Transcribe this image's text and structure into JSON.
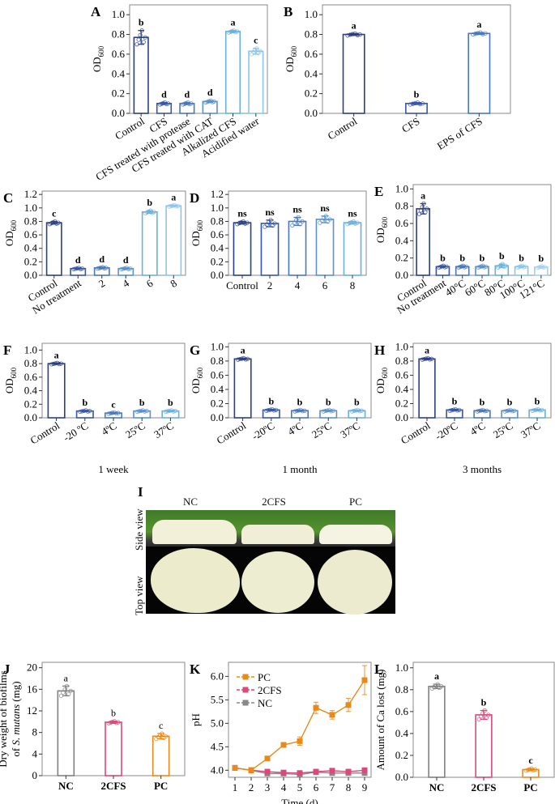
{
  "figure": {
    "panel_labels": [
      "A",
      "B",
      "C",
      "D",
      "E",
      "F",
      "G",
      "H",
      "I",
      "J",
      "K",
      "L"
    ],
    "photo": {
      "column_labels": [
        "NC",
        "2CFS",
        "PC"
      ],
      "row_labels": [
        "Side view",
        "Top view"
      ]
    }
  },
  "chart_data": [
    {
      "id": "A",
      "type": "bar",
      "title": "",
      "xlabel": "",
      "ylabel": "OD600",
      "ylim": [
        0,
        1.1
      ],
      "yticks": [
        0.0,
        0.2,
        0.4,
        0.6,
        0.8,
        1.0
      ],
      "categories": [
        "Control",
        "CFS",
        "CFS treated with protease",
        "CFS treated with CAT",
        "Alkalized CFS",
        "Acidified water"
      ],
      "values": [
        0.77,
        0.1,
        0.1,
        0.12,
        0.83,
        0.63
      ],
      "errors": [
        0.07,
        0.01,
        0.01,
        0.01,
        0.01,
        0.03
      ],
      "significance": [
        "b",
        "d",
        "d",
        "d",
        "a",
        "c"
      ],
      "rotate_xticks": true
    },
    {
      "id": "B",
      "type": "bar",
      "title": "",
      "xlabel": "",
      "ylabel": "OD600",
      "ylim": [
        0,
        1.1
      ],
      "yticks": [
        0.0,
        0.2,
        0.4,
        0.6,
        0.8,
        1.0
      ],
      "categories": [
        "Control",
        "CFS",
        "EPS of CFS"
      ],
      "values": [
        0.8,
        0.1,
        0.81
      ],
      "errors": [
        0.01,
        0.01,
        0.01
      ],
      "significance": [
        "a",
        "b",
        "a"
      ],
      "rotate_xticks": true
    },
    {
      "id": "C",
      "type": "bar",
      "title": "",
      "xlabel": "",
      "ylabel": "OD600",
      "ylim": [
        0,
        1.25
      ],
      "yticks": [
        0.0,
        0.2,
        0.4,
        0.6,
        0.8,
        1.0,
        1.2
      ],
      "categories": [
        "Control",
        "No treatment",
        "2",
        "4",
        "6",
        "8"
      ],
      "values": [
        0.78,
        0.1,
        0.11,
        0.1,
        0.94,
        1.03
      ],
      "errors": [
        0.02,
        0.01,
        0.01,
        0.01,
        0.02,
        0.01
      ],
      "significance": [
        "c",
        "d",
        "d",
        "d",
        "b",
        "a"
      ],
      "rotate_xticks": true
    },
    {
      "id": "D",
      "type": "bar",
      "title": "",
      "xlabel": "",
      "ylabel": "OD600",
      "ylim": [
        0,
        1.25
      ],
      "yticks": [
        0.0,
        0.2,
        0.4,
        0.6,
        0.8,
        1.0,
        1.2
      ],
      "categories": [
        "Control",
        "2",
        "4",
        "6",
        "8"
      ],
      "values": [
        0.78,
        0.77,
        0.8,
        0.83,
        0.78
      ],
      "errors": [
        0.02,
        0.05,
        0.06,
        0.05,
        0.02
      ],
      "significance": [
        "ns",
        "ns",
        "ns",
        "ns",
        "ns"
      ],
      "rotate_xticks": false
    },
    {
      "id": "E",
      "type": "bar",
      "title": "",
      "xlabel": "",
      "ylabel": "OD600",
      "ylim": [
        0,
        1.05
      ],
      "yticks": [
        0.0,
        0.2,
        0.4,
        0.6,
        0.8,
        1.0
      ],
      "categories": [
        "Control",
        "No treatment",
        "40°C",
        "60°C",
        "80°C",
        "100°C",
        "121°C"
      ],
      "values": [
        0.77,
        0.1,
        0.1,
        0.1,
        0.11,
        0.1,
        0.095
      ],
      "errors": [
        0.06,
        0.01,
        0.01,
        0.01,
        0.02,
        0.01,
        0.01
      ],
      "significance": [
        "a",
        "b",
        "b",
        "b",
        "b",
        "b",
        "b"
      ],
      "rotate_xticks": true
    },
    {
      "id": "F",
      "type": "bar",
      "title": "",
      "xlabel": "1 week",
      "ylabel": "OD600",
      "ylim": [
        0,
        1.1
      ],
      "yticks": [
        0.0,
        0.2,
        0.4,
        0.6,
        0.8,
        1.0
      ],
      "categories": [
        "Control",
        "-20 ºC",
        "4ºC",
        "25ºC",
        "37ºC"
      ],
      "values": [
        0.8,
        0.1,
        0.07,
        0.1,
        0.1
      ],
      "errors": [
        0.01,
        0.01,
        0.01,
        0.01,
        0.01
      ],
      "significance": [
        "a",
        "b",
        "c",
        "b",
        "b"
      ],
      "rotate_xticks": true
    },
    {
      "id": "G",
      "type": "bar",
      "title": "",
      "xlabel": "1 month",
      "ylabel": "OD600",
      "ylim": [
        0,
        1.05
      ],
      "yticks": [
        0.0,
        0.2,
        0.4,
        0.6,
        0.8,
        1.0
      ],
      "categories": [
        "Control",
        "-20ºC",
        "4ºC",
        "25ºC",
        "37ºC"
      ],
      "values": [
        0.83,
        0.11,
        0.1,
        0.1,
        0.1
      ],
      "errors": [
        0.01,
        0.01,
        0.01,
        0.01,
        0.01
      ],
      "significance": [
        "a",
        "b",
        "b",
        "b",
        "b"
      ],
      "rotate_xticks": true
    },
    {
      "id": "H",
      "type": "bar",
      "title": "",
      "xlabel": "3 months",
      "ylabel": "OD600",
      "ylim": [
        0,
        1.05
      ],
      "yticks": [
        0.0,
        0.2,
        0.4,
        0.6,
        0.8,
        1.0
      ],
      "categories": [
        "Control",
        "-20ºC",
        "4ºC",
        "25ºC",
        "37ºC"
      ],
      "values": [
        0.83,
        0.11,
        0.1,
        0.1,
        0.11
      ],
      "errors": [
        0.01,
        0.01,
        0.01,
        0.01,
        0.01
      ],
      "significance": [
        "a",
        "b",
        "b",
        "b",
        "b"
      ],
      "rotate_xticks": true
    },
    {
      "id": "J",
      "type": "bar",
      "title": "",
      "xlabel": "",
      "ylabel": "Dry weight of biofilms of S. mutans (mg)",
      "ylim": [
        0,
        21
      ],
      "yticks": [
        0,
        4,
        8,
        12,
        16,
        20
      ],
      "categories": [
        "NC",
        "2CFS",
        "PC"
      ],
      "values": [
        15.7,
        9.9,
        7.3
      ],
      "errors": [
        0.9,
        0.2,
        0.5
      ],
      "significance": [
        "a",
        "b",
        "c"
      ],
      "colors": [
        "#808080",
        "#d9497a",
        "#e88a1a"
      ],
      "rotate_xticks": false
    },
    {
      "id": "K",
      "type": "line",
      "title": "",
      "xlabel": "Time (d)",
      "ylabel": "pH",
      "xlim": [
        0.6,
        9.4
      ],
      "ylim": [
        3.85,
        6.3
      ],
      "x": [
        1,
        2,
        3,
        4,
        5,
        6,
        7,
        8,
        9
      ],
      "yticks": [
        4.0,
        4.5,
        5.0,
        5.5,
        6.0
      ],
      "legend_position": "upper left",
      "series": [
        {
          "name": "PC",
          "color": "#e88a1a",
          "values": [
            4.05,
            4.0,
            4.25,
            4.54,
            4.62,
            5.33,
            5.18,
            5.39,
            5.92
          ],
          "errors": [
            0.02,
            0.02,
            0.02,
            0.03,
            0.09,
            0.12,
            0.09,
            0.14,
            0.31
          ]
        },
        {
          "name": "2CFS",
          "color": "#d9497a",
          "values": [
            4.05,
            4.0,
            3.97,
            3.95,
            3.94,
            3.97,
            3.99,
            3.97,
            4.0
          ],
          "errors": [
            0.01,
            0.01,
            0.02,
            0.02,
            0.02,
            0.02,
            0.02,
            0.02,
            0.02
          ]
        },
        {
          "name": "NC",
          "color": "#888888",
          "values": [
            4.05,
            4.0,
            3.93,
            3.93,
            3.91,
            3.96,
            3.94,
            3.94,
            3.94
          ],
          "errors": [
            0.01,
            0.01,
            0.01,
            0.01,
            0.01,
            0.01,
            0.01,
            0.01,
            0.01
          ]
        }
      ]
    },
    {
      "id": "L",
      "type": "bar",
      "title": "",
      "xlabel": "",
      "ylabel": "Amount of Ca lost (mg)",
      "ylim": [
        0,
        1.05
      ],
      "yticks": [
        0.0,
        0.2,
        0.4,
        0.6,
        0.8,
        1.0
      ],
      "categories": [
        "NC",
        "2CFS",
        "PC"
      ],
      "values": [
        0.83,
        0.57,
        0.07
      ],
      "errors": [
        0.02,
        0.04,
        0.01
      ],
      "significance": [
        "a",
        "b",
        "c"
      ],
      "colors": [
        "#808080",
        "#d9497a",
        "#e88a1a"
      ],
      "rotate_xticks": false
    }
  ]
}
